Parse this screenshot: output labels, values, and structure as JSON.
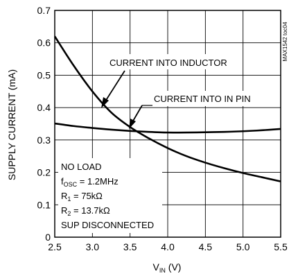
{
  "chart_data": {
    "type": "line",
    "xlabel_base": "V",
    "xlabel_sub": "IN",
    "xlabel_unit": " (V)",
    "ylabel": "SUPPLY CURRENT (mA)",
    "xlim": [
      2.5,
      5.5
    ],
    "ylim": [
      0,
      0.7
    ],
    "x_ticks": [
      "2.5",
      "3.0",
      "3.5",
      "4.0",
      "4.5",
      "5.0",
      "5.5"
    ],
    "y_ticks": [
      "0",
      "0.1",
      "0.2",
      "0.3",
      "0.4",
      "0.5",
      "0.6",
      "0.7"
    ],
    "grid": true,
    "series": [
      {
        "name": "CURRENT INTO INDUCTOR",
        "x": [
          2.5,
          2.75,
          3.0,
          3.25,
          3.5,
          3.75,
          4.0,
          4.25,
          4.5,
          4.75,
          5.0,
          5.25,
          5.5
        ],
        "y": [
          0.62,
          0.53,
          0.45,
          0.385,
          0.34,
          0.305,
          0.275,
          0.25,
          0.23,
          0.213,
          0.198,
          0.185,
          0.172
        ]
      },
      {
        "name": "CURRENT INTO IN PIN",
        "x": [
          2.5,
          2.75,
          3.0,
          3.25,
          3.5,
          3.75,
          4.0,
          4.25,
          4.5,
          4.75,
          5.0,
          5.25,
          5.5
        ],
        "y": [
          0.351,
          0.343,
          0.337,
          0.332,
          0.328,
          0.325,
          0.323,
          0.323,
          0.324,
          0.325,
          0.327,
          0.33,
          0.334
        ]
      }
    ],
    "annotations": {
      "inductor": "CURRENT INTO INDUCTOR",
      "inpin": "CURRENT INTO IN PIN"
    },
    "conditions": {
      "line1": "NO LOAD",
      "line2_base": "f",
      "line2_sub": "OSC",
      "line2_rest": " = 1.2MHz",
      "line3_base": "R",
      "line3_sub": "1",
      "line3_rest": " = 75kΩ",
      "line4_base": "R",
      "line4_sub": "2",
      "line4_rest": " = 13.7kΩ",
      "line5": "SUP DISCONNECTED"
    },
    "part_id": "MAX1542 toc04"
  }
}
